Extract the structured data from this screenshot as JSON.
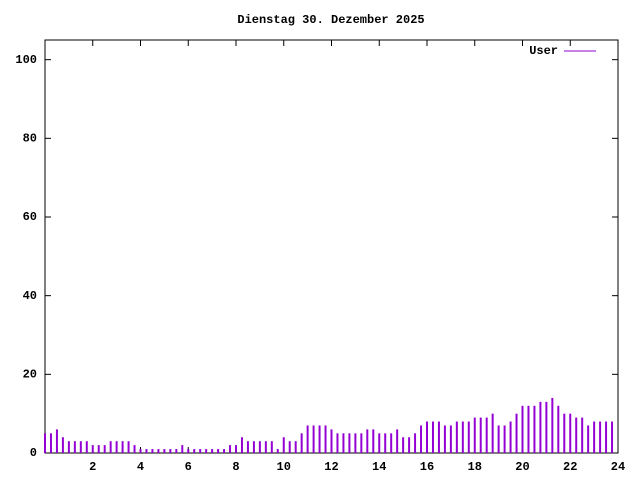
{
  "chart_data": {
    "type": "impulses",
    "title": "Dienstag 30. Dezember 2025",
    "x": [
      0,
      0.25,
      0.5,
      0.75,
      1,
      1.25,
      1.5,
      1.75,
      2,
      2.25,
      2.5,
      2.75,
      3,
      3.25,
      3.5,
      3.75,
      4,
      4.25,
      4.5,
      4.75,
      5,
      5.25,
      5.5,
      5.75,
      6,
      6.25,
      6.5,
      6.75,
      7,
      7.25,
      7.5,
      7.75,
      8,
      8.25,
      8.5,
      8.75,
      9,
      9.25,
      9.5,
      9.75,
      10,
      10.25,
      10.5,
      10.75,
      11,
      11.25,
      11.5,
      11.75,
      12,
      12.25,
      12.5,
      12.75,
      13,
      13.25,
      13.5,
      13.75,
      14,
      14.25,
      14.5,
      14.75,
      15,
      15.25,
      15.5,
      15.75,
      16,
      16.25,
      16.5,
      16.75,
      17,
      17.25,
      17.5,
      17.75,
      18,
      18.25,
      18.5,
      18.75,
      19,
      19.25,
      19.5,
      19.75,
      20,
      20.25,
      20.5,
      20.75,
      21,
      21.25,
      21.5,
      21.75,
      22,
      22.25,
      22.5,
      22.75,
      23,
      23.25,
      23.5,
      23.75
    ],
    "series": [
      {
        "name": "User",
        "color": "#9400d3",
        "values": [
          5,
          5,
          6,
          4,
          3,
          3,
          3,
          3,
          2,
          2,
          2,
          3,
          3,
          3,
          3,
          2,
          1,
          1,
          1,
          1,
          1,
          1,
          1,
          2,
          1,
          1,
          1,
          1,
          1,
          1,
          1,
          2,
          2,
          4,
          3,
          3,
          3,
          3,
          3,
          1,
          4,
          3,
          3,
          5,
          7,
          7,
          7,
          7,
          6,
          5,
          5,
          5,
          5,
          5,
          6,
          6,
          5,
          5,
          5,
          6,
          4,
          4,
          5,
          7,
          8,
          8,
          8,
          7,
          7,
          8,
          8,
          8,
          9,
          9,
          9,
          10,
          7,
          7,
          8,
          10,
          12,
          12,
          12,
          13,
          13,
          14,
          12,
          10,
          10,
          9,
          9,
          7,
          8,
          8,
          8,
          8
        ]
      }
    ],
    "xlim": [
      0,
      24
    ],
    "xticks": [
      2,
      4,
      6,
      8,
      10,
      12,
      14,
      16,
      18,
      20,
      22,
      24
    ],
    "ylim": [
      0,
      105
    ],
    "yticks": [
      0,
      20,
      40,
      60,
      80,
      100
    ],
    "legend": "top-right"
  }
}
